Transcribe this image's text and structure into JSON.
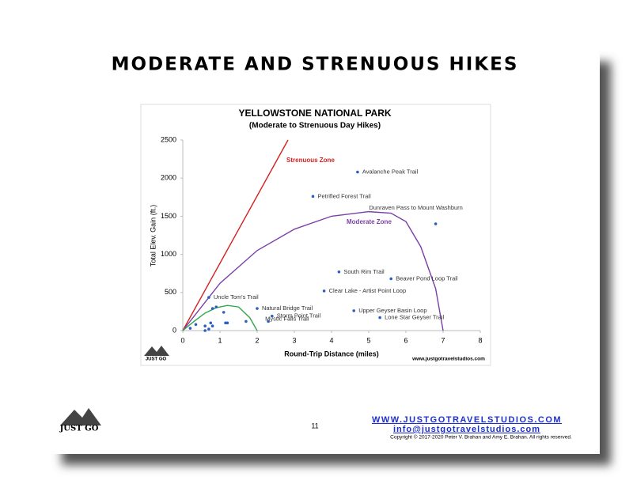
{
  "slide_title": "MODERATE AND STRENUOUS HIKES",
  "page_number": "11",
  "footer": {
    "website": "WWW.JUSTGOTRAVELSTUDIOS.COM",
    "email": "info@justgotravelstudios.com",
    "copyright": "Copyright © 2017-2020 Peter V. Brahan and Amy E. Brahan.  All rights reserved."
  },
  "logo_text": "JUST GO",
  "chart_data": {
    "type": "scatter",
    "title": "YELLOWSTONE NATIONAL PARK",
    "subtitle": "(Moderate to Strenuous Day Hikes)",
    "x_label": "Round-Trip Distance (miles)",
    "y_label": "Total Elev. Gain (ft.)",
    "source": "www.justgotravelstudios.com",
    "logo_text": "JUST GO",
    "xlim": [
      0,
      8
    ],
    "ylim": [
      0,
      2500
    ],
    "xticks": [
      0,
      1,
      2,
      3,
      4,
      5,
      6,
      7,
      8
    ],
    "yticks": [
      0,
      500,
      1000,
      1500,
      2000,
      2500
    ],
    "grid": false,
    "series": [
      {
        "color": "#2e5fbf",
        "x": [
          4.7,
          3.5,
          6.8,
          4.2,
          5.6,
          3.8,
          4.6,
          5.3,
          0.7,
          2.0,
          2.4,
          2.3,
          0.2,
          0.35,
          0.6,
          0.6,
          0.75,
          0.8,
          0.8,
          0.9,
          1.1,
          1.15,
          1.2,
          1.7,
          0.7
        ],
        "values": [
          2080,
          1760,
          1400,
          770,
          680,
          520,
          260,
          170,
          435,
          290,
          190,
          120,
          30,
          80,
          60,
          0,
          100,
          60,
          290,
          310,
          240,
          100,
          100,
          120,
          20
        ],
        "labels": [
          "Avalanche Peak Trail",
          "Petrified Forest Trail",
          "Dunraven Pass to Mount Washburn",
          "South Rim Trail",
          "Beaver Pond Loop Trail",
          "Clear Lake - Artist Point Loop",
          "Upper Geyser Basin Loop",
          "Lone Star Geyser Trail",
          "Uncle Tom's Trail",
          "Natural Bridge Trail",
          "Storm Point Trail",
          "Mystic Falls Trail",
          null,
          null,
          null,
          null,
          null,
          null,
          null,
          null,
          null,
          null,
          null,
          null,
          null
        ]
      }
    ],
    "lines": [
      {
        "type": "line",
        "color": "#d42020",
        "annotation": "Strenuous Zone",
        "x": [
          0,
          2.83
        ],
        "values": [
          0,
          2500
        ]
      },
      {
        "type": "line",
        "color": "#7b3fa8",
        "annotation": "Moderate Zone",
        "x": [
          0,
          1,
          2,
          3,
          4,
          5,
          5.6,
          6,
          6.4,
          6.8,
          7
        ],
        "values": [
          0,
          620,
          1050,
          1330,
          1500,
          1560,
          1540,
          1430,
          1100,
          550,
          0
        ]
      },
      {
        "type": "line",
        "color": "#2eaa4a",
        "x": [
          0,
          0.3,
          0.6,
          0.9,
          1.2,
          1.5,
          1.8,
          2.0
        ],
        "values": [
          0,
          120,
          230,
          300,
          330,
          310,
          170,
          0
        ]
      }
    ]
  }
}
